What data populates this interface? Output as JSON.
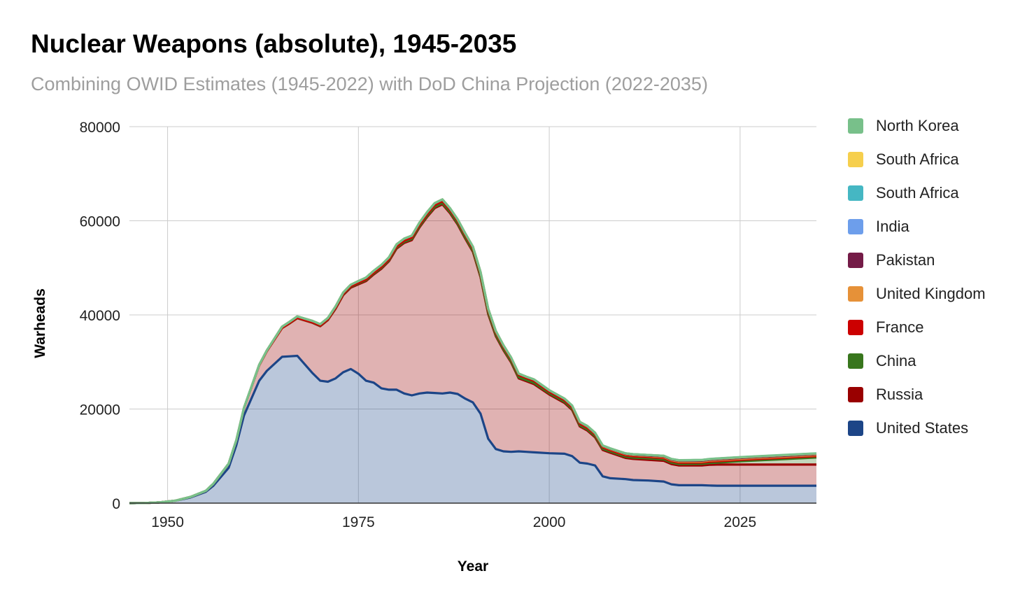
{
  "chart_data": {
    "type": "area",
    "title": "Nuclear Weapons (absolute), 1945-2035",
    "subtitle": "Combining OWID Estimates (1945-2022) with DoD China Projection (2022-2035)",
    "xlabel": "Year",
    "ylabel": "Warheads",
    "xlim": [
      1945,
      2035
    ],
    "ylim": [
      0,
      80000
    ],
    "x_ticks": [
      1950,
      1975,
      2000,
      2025
    ],
    "y_ticks": [
      0,
      20000,
      40000,
      60000,
      80000
    ],
    "grid": true,
    "legend_position": "right",
    "stacked": true,
    "x": [
      1945,
      1947,
      1949,
      1951,
      1953,
      1955,
      1956,
      1958,
      1959,
      1960,
      1962,
      1963,
      1965,
      1966,
      1967,
      1969,
      1970,
      1971,
      1972,
      1973,
      1974,
      1975,
      1976,
      1977,
      1978,
      1979,
      1980,
      1981,
      1982,
      1983,
      1984,
      1985,
      1986,
      1987,
      1988,
      1989,
      1990,
      1991,
      1992,
      1993,
      1994,
      1995,
      1996,
      1997,
      1998,
      2000,
      2002,
      2003,
      2004,
      2005,
      2006,
      2007,
      2008,
      2010,
      2011,
      2013,
      2015,
      2016,
      2017,
      2020,
      2021,
      2022,
      2025,
      2030,
      2035
    ],
    "series": [
      {
        "name": "United States",
        "color": "#1c4587",
        "values": [
          2,
          30,
          170,
          500,
          1200,
          2400,
          3700,
          7500,
          12300,
          18600,
          26000,
          28100,
          31100,
          31200,
          31300,
          27600,
          26000,
          25800,
          26500,
          27800,
          28500,
          27500,
          26000,
          25600,
          24400,
          24100,
          24100,
          23300,
          22900,
          23300,
          23500,
          23400,
          23300,
          23500,
          23200,
          22200,
          21400,
          19000,
          13700,
          11500,
          11000,
          10900,
          11000,
          10900,
          10800,
          10600,
          10500,
          10000,
          8600,
          8400,
          8000,
          5700,
          5300,
          5100,
          4900,
          4800,
          4600,
          4000,
          3800,
          3800,
          3750,
          3700,
          3700,
          3700,
          3700
        ]
      },
      {
        "name": "Russia",
        "color": "#990000",
        "values": [
          0,
          0,
          1,
          25,
          120,
          200,
          420,
          870,
          1050,
          1600,
          3300,
          4200,
          6100,
          7000,
          8000,
          10700,
          11600,
          13100,
          14800,
          16400,
          17300,
          19000,
          21200,
          23000,
          25400,
          27300,
          30000,
          32000,
          33000,
          35300,
          37300,
          39300,
          40200,
          38100,
          36000,
          34000,
          32000,
          29000,
          26500,
          24000,
          21500,
          19000,
          15500,
          15000,
          14500,
          12500,
          10800,
          9800,
          7700,
          7000,
          6000,
          5600,
          5400,
          4500,
          4500,
          4400,
          4400,
          4300,
          4200,
          4200,
          4400,
          4500,
          4500,
          4500,
          4500
        ]
      },
      {
        "name": "China",
        "color": "#38761d",
        "values": [
          0,
          0,
          0,
          0,
          0,
          0,
          0,
          0,
          0,
          0,
          0,
          0,
          5,
          20,
          25,
          50,
          75,
          100,
          130,
          150,
          170,
          185,
          190,
          200,
          210,
          215,
          220,
          225,
          230,
          235,
          240,
          240,
          240,
          240,
          235,
          235,
          230,
          230,
          230,
          230,
          230,
          230,
          230,
          230,
          230,
          230,
          230,
          230,
          230,
          230,
          230,
          230,
          240,
          260,
          270,
          280,
          290,
          300,
          310,
          350,
          370,
          410,
          700,
          1100,
          1500
        ]
      },
      {
        "name": "France",
        "color": "#cc0000",
        "values": [
          0,
          0,
          0,
          0,
          0,
          0,
          0,
          0,
          0,
          0,
          0,
          0,
          30,
          40,
          50,
          50,
          60,
          70,
          80,
          100,
          120,
          140,
          160,
          180,
          200,
          220,
          250,
          270,
          300,
          340,
          370,
          400,
          420,
          450,
          500,
          510,
          510,
          520,
          540,
          525,
          510,
          500,
          480,
          450,
          450,
          350,
          350,
          350,
          350,
          350,
          350,
          350,
          300,
          300,
          300,
          300,
          300,
          300,
          300,
          290,
          290,
          290,
          290,
          290,
          290
        ]
      },
      {
        "name": "United Kingdom",
        "color": "#e69138",
        "values": [
          0,
          0,
          0,
          0,
          5,
          10,
          15,
          20,
          30,
          40,
          100,
          150,
          270,
          300,
          310,
          300,
          280,
          270,
          270,
          290,
          320,
          350,
          370,
          390,
          400,
          410,
          420,
          420,
          420,
          420,
          420,
          400,
          380,
          360,
          350,
          350,
          350,
          350,
          350,
          330,
          300,
          300,
          300,
          280,
          280,
          280,
          280,
          280,
          280,
          280,
          230,
          230,
          230,
          230,
          225,
          225,
          215,
          215,
          215,
          215,
          225,
          225,
          225,
          225,
          225
        ]
      },
      {
        "name": "Pakistan",
        "color": "#741b47",
        "values": [
          0,
          0,
          0,
          0,
          0,
          0,
          0,
          0,
          0,
          0,
          0,
          0,
          0,
          0,
          0,
          0,
          0,
          0,
          0,
          0,
          0,
          0,
          0,
          0,
          0,
          0,
          0,
          0,
          0,
          0,
          0,
          0,
          0,
          0,
          0,
          0,
          0,
          0,
          0,
          0,
          0,
          0,
          0,
          0,
          5,
          10,
          20,
          30,
          40,
          50,
          60,
          70,
          80,
          90,
          100,
          110,
          130,
          140,
          150,
          160,
          165,
          170,
          170,
          170,
          170
        ]
      },
      {
        "name": "India",
        "color": "#6d9eeb",
        "values": [
          0,
          0,
          0,
          0,
          0,
          0,
          0,
          0,
          0,
          0,
          0,
          0,
          0,
          0,
          0,
          0,
          0,
          0,
          0,
          0,
          0,
          0,
          0,
          0,
          0,
          0,
          0,
          0,
          0,
          0,
          0,
          0,
          0,
          0,
          0,
          0,
          0,
          0,
          0,
          0,
          0,
          0,
          0,
          0,
          20,
          30,
          40,
          50,
          60,
          70,
          80,
          80,
          80,
          90,
          100,
          110,
          120,
          130,
          130,
          150,
          155,
          160,
          160,
          160,
          160
        ]
      },
      {
        "name": "South Africa",
        "color": "#45b7c3",
        "values": [
          0,
          0,
          0,
          0,
          0,
          0,
          0,
          0,
          0,
          0,
          0,
          0,
          0,
          0,
          0,
          0,
          0,
          0,
          0,
          0,
          0,
          0,
          0,
          0,
          0,
          0,
          0,
          0,
          0,
          0,
          0,
          0,
          0,
          0,
          0,
          0,
          0,
          0,
          0,
          0,
          0,
          0,
          0,
          0,
          0,
          0,
          0,
          0,
          0,
          0,
          0,
          0,
          0,
          0,
          0,
          0,
          0,
          0,
          0,
          0,
          0,
          0,
          0,
          0,
          0
        ]
      },
      {
        "name": "South Africa",
        "color": "#f6cf4d",
        "values": [
          0,
          0,
          0,
          0,
          0,
          0,
          0,
          0,
          0,
          0,
          0,
          0,
          0,
          0,
          0,
          0,
          0,
          0,
          0,
          0,
          0,
          0,
          0,
          0,
          0,
          0,
          0,
          0,
          0,
          0,
          5,
          6,
          6,
          6,
          6,
          6,
          4,
          0,
          0,
          0,
          0,
          0,
          0,
          0,
          0,
          0,
          0,
          0,
          0,
          0,
          0,
          0,
          0,
          0,
          0,
          0,
          0,
          0,
          0,
          0,
          0,
          0,
          0,
          0,
          0
        ]
      },
      {
        "name": "North Korea",
        "color": "#78c08a",
        "values": [
          0,
          0,
          0,
          0,
          0,
          0,
          0,
          0,
          0,
          0,
          0,
          0,
          0,
          0,
          0,
          0,
          0,
          0,
          0,
          0,
          0,
          0,
          0,
          0,
          0,
          0,
          0,
          0,
          0,
          0,
          0,
          0,
          0,
          0,
          0,
          0,
          0,
          0,
          0,
          0,
          0,
          0,
          0,
          0,
          0,
          0,
          0,
          0,
          0,
          0,
          0,
          0,
          5,
          8,
          10,
          10,
          15,
          20,
          25,
          30,
          35,
          40,
          40,
          40,
          40
        ]
      }
    ]
  }
}
